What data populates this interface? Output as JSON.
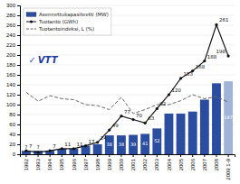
{
  "chart_data": {
    "type": "bar",
    "categories": [
      "1992",
      "1993",
      "1994",
      "1995",
      "1996",
      "1997",
      "1998",
      "1999",
      "2000",
      "2001",
      "2002",
      "2003",
      "2004",
      "2005",
      "2006",
      "2007",
      "2008",
      "2009 1-9"
    ],
    "series": [
      {
        "name": "Asennettukapasiteetti (MW)",
        "type": "bar",
        "color": "#2B4DA0",
        "colors": [
          "#2B4DA0",
          "#2B4DA0",
          "#2B4DA0",
          "#2B4DA0",
          "#2B4DA0",
          "#2B4DA0",
          "#2B4DA0",
          "#2B4DA0",
          "#2B4DA0",
          "#2B4DA0",
          "#2B4DA0",
          "#2B4DA0",
          "#2B4DA0",
          "#2B4DA0",
          "#2B4DA0",
          "#2B4DA0",
          "#2B4DA0",
          "#A0B4D8"
        ],
        "values": [
          7,
          7,
          7,
          11,
          11,
          17,
          20,
          38,
          38,
          39,
          41,
          52,
          82,
          82,
          86,
          110,
          143,
          147
        ],
        "data_labels": true,
        "value_labels": [
          "7",
          "7",
          null,
          null,
          null,
          null,
          null,
          "38",
          "38",
          "39",
          "41",
          "52",
          null,
          null,
          null,
          null,
          null,
          "147"
        ]
      },
      {
        "name": "Tuotanto (GWh)",
        "type": "line",
        "color": "#111111",
        "marker": "circle",
        "values": [
          7,
          4,
          7,
          11,
          11,
          17,
          24,
          49,
          77,
          70,
          63,
          92,
          120,
          153,
          168,
          188,
          261,
          198
        ],
        "data_labels": true,
        "value_labels": [
          "7",
          null,
          "7",
          "11",
          "11",
          "17",
          "24",
          "49",
          "77",
          "70",
          "63",
          "92",
          "120",
          "153",
          "168",
          "188",
          "261",
          "198"
        ]
      },
      {
        "name": "Tuotantoindeksi, L (%)",
        "type": "line",
        "color": "#666666",
        "line_style": "dashed",
        "values": [
          125,
          107,
          118,
          112,
          110,
          100,
          98,
          90,
          115,
          82,
          90,
          100,
          100,
          108,
          120,
          112,
          116,
          105
        ]
      }
    ],
    "ylim": [
      0,
      300
    ],
    "yticks": [
      0,
      20,
      40,
      60,
      80,
      100,
      120,
      140,
      160,
      180,
      200,
      220,
      240,
      260,
      280,
      300
    ],
    "grid": true,
    "legend": "upper left",
    "annotations": [
      {
        "text": "✓",
        "color": "#3366CC"
      },
      {
        "text": "VTT",
        "color": "#1A3A99"
      }
    ]
  }
}
